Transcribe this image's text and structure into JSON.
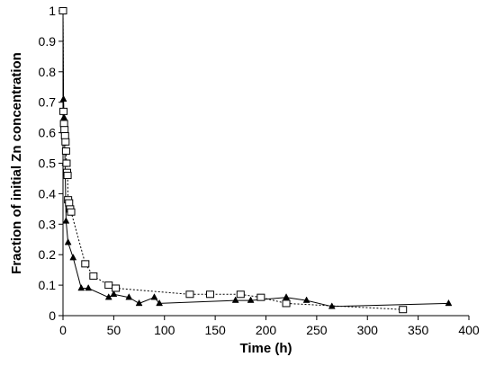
{
  "chart_data": {
    "type": "scatter",
    "title": "",
    "xlabel": "Time (h)",
    "ylabel": "Fraction of initial Zn concentration",
    "xlim": [
      0,
      400
    ],
    "ylim": [
      0,
      1
    ],
    "xticks": [
      "0",
      "50",
      "100",
      "150",
      "200",
      "250",
      "300",
      "350",
      "400"
    ],
    "yticks": [
      "0",
      "0.1",
      "0.2",
      "0.3",
      "0.4",
      "0.5",
      "0.6",
      "0.7",
      "0.8",
      "0.9",
      "1"
    ],
    "grid": false,
    "legend": "none",
    "series": [
      {
        "marker": "triangle",
        "line": "solid",
        "color": "#000000",
        "x": [
          0,
          0.5,
          1,
          2,
          3,
          5,
          10,
          18,
          25,
          45,
          50,
          65,
          75,
          90,
          95,
          170,
          185,
          220,
          240,
          265,
          380
        ],
        "y": [
          1,
          0.71,
          0.65,
          0.5,
          0.31,
          0.24,
          0.19,
          0.09,
          0.09,
          0.06,
          0.07,
          0.06,
          0.04,
          0.06,
          0.04,
          0.05,
          0.05,
          0.06,
          0.05,
          0.03,
          0.04
        ]
      },
      {
        "marker": "square",
        "line": "dotted",
        "color": "#000000",
        "x": [
          0,
          0.5,
          1,
          1.5,
          2,
          2.5,
          3,
          3.5,
          4,
          4.5,
          5,
          6,
          7,
          8,
          22,
          30,
          45,
          52,
          125,
          145,
          175,
          195,
          220,
          335
        ],
        "y": [
          1,
          0.67,
          0.63,
          0.61,
          0.59,
          0.57,
          0.54,
          0.5,
          0.47,
          0.46,
          0.38,
          0.37,
          0.35,
          0.34,
          0.17,
          0.13,
          0.1,
          0.09,
          0.07,
          0.07,
          0.07,
          0.06,
          0.04,
          0.02
        ]
      }
    ]
  }
}
